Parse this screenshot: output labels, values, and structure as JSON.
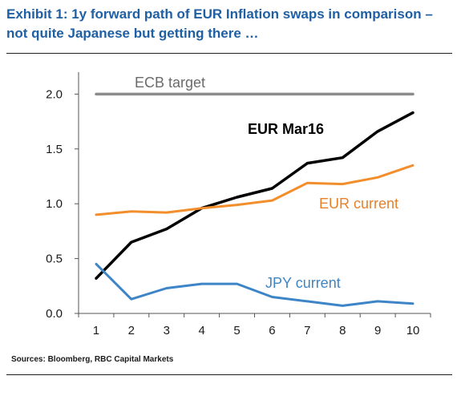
{
  "title": "Exhibit 1: 1y forward path of EUR Inflation swaps in comparison – not quite Japanese but getting there …",
  "source": "Sources: Bloomberg, RBC Capital Markets",
  "chart_data": {
    "type": "line",
    "title": "Exhibit 1: 1y forward path of EUR Inflation swaps in comparison – not quite Japanese but getting there …",
    "xlabel": "",
    "ylabel": "",
    "x": [
      1,
      2,
      3,
      4,
      5,
      6,
      7,
      8,
      9,
      10
    ],
    "x_tick_labels": [
      "1",
      "2",
      "3",
      "4",
      "5",
      "6",
      "7",
      "8",
      "9",
      "10"
    ],
    "y_tick_labels": [
      "0.0",
      "0.5",
      "1.0",
      "1.5",
      "2.0"
    ],
    "y_ticks": [
      0.0,
      0.5,
      1.0,
      1.5,
      2.0
    ],
    "ylim": [
      0,
      2.2
    ],
    "xlim": [
      0.5,
      10.5
    ],
    "grid": false,
    "legend": "none",
    "series": [
      {
        "name": "ECB target",
        "color": "#8c8c8c",
        "values": [
          2.0,
          2.0,
          2.0,
          2.0,
          2.0,
          2.0,
          2.0,
          2.0,
          2.0,
          2.0
        ]
      },
      {
        "name": "EUR Mar16",
        "color": "#000000",
        "values": [
          0.32,
          0.65,
          0.77,
          0.96,
          1.06,
          1.14,
          1.37,
          1.42,
          1.66,
          1.83
        ]
      },
      {
        "name": "EUR current",
        "color": "#f28e2b",
        "values": [
          0.9,
          0.93,
          0.92,
          0.96,
          0.99,
          1.03,
          1.19,
          1.18,
          1.24,
          1.35
        ]
      },
      {
        "name": "JPY current",
        "color": "#3d85c6",
        "values": [
          0.45,
          0.13,
          0.23,
          0.27,
          0.27,
          0.15,
          0.11,
          0.07,
          0.11,
          0.09
        ]
      }
    ]
  }
}
